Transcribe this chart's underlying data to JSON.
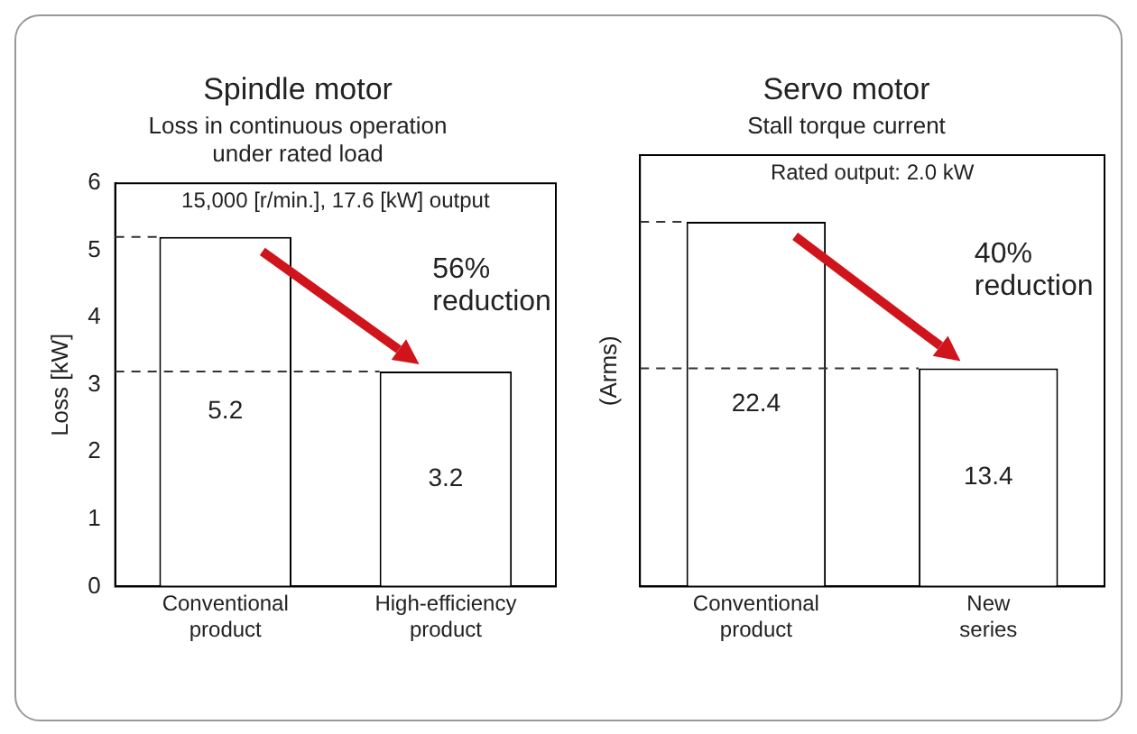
{
  "chart_data": [
    {
      "type": "bar",
      "title": "Spindle motor",
      "subtitle": "Loss in continuous operation under rated load",
      "ylabel": "Loss [kW]",
      "categories": [
        "Conventional product",
        "High-efficiency product"
      ],
      "values": [
        5.2,
        3.2
      ],
      "color": "#ffffff",
      "ylim": [
        0,
        6
      ],
      "yticks": [
        0,
        1,
        2,
        3,
        4,
        5,
        6
      ],
      "grid": false,
      "legend": false,
      "data_labels": true,
      "ref_lines": [
        {
          "axis": "y",
          "value": 5.2,
          "line_style": "dashed"
        },
        {
          "axis": "y",
          "value": 3.2,
          "line_style": "dashed"
        }
      ],
      "annotations": [
        "15,000 [r/min.], 17.6 [kW] output",
        "56% reduction"
      ]
    },
    {
      "type": "bar",
      "title": "Servo motor",
      "subtitle": "Stall torque current",
      "ylabel": "(Arms)",
      "categories": [
        "Conventional product",
        "New series"
      ],
      "values": [
        22.4,
        13.4
      ],
      "color": "#ffffff",
      "ylim": [
        0,
        26.5
      ],
      "grid": false,
      "legend": false,
      "data_labels": true,
      "tick_labels": "x",
      "ref_lines": [
        {
          "axis": "y",
          "value": 22.4,
          "line_style": "dashed"
        },
        {
          "axis": "y",
          "value": 13.4,
          "line_style": "dashed"
        }
      ],
      "annotations": [
        "Rated output: 2.0 kW",
        "40% reduction"
      ]
    }
  ]
}
